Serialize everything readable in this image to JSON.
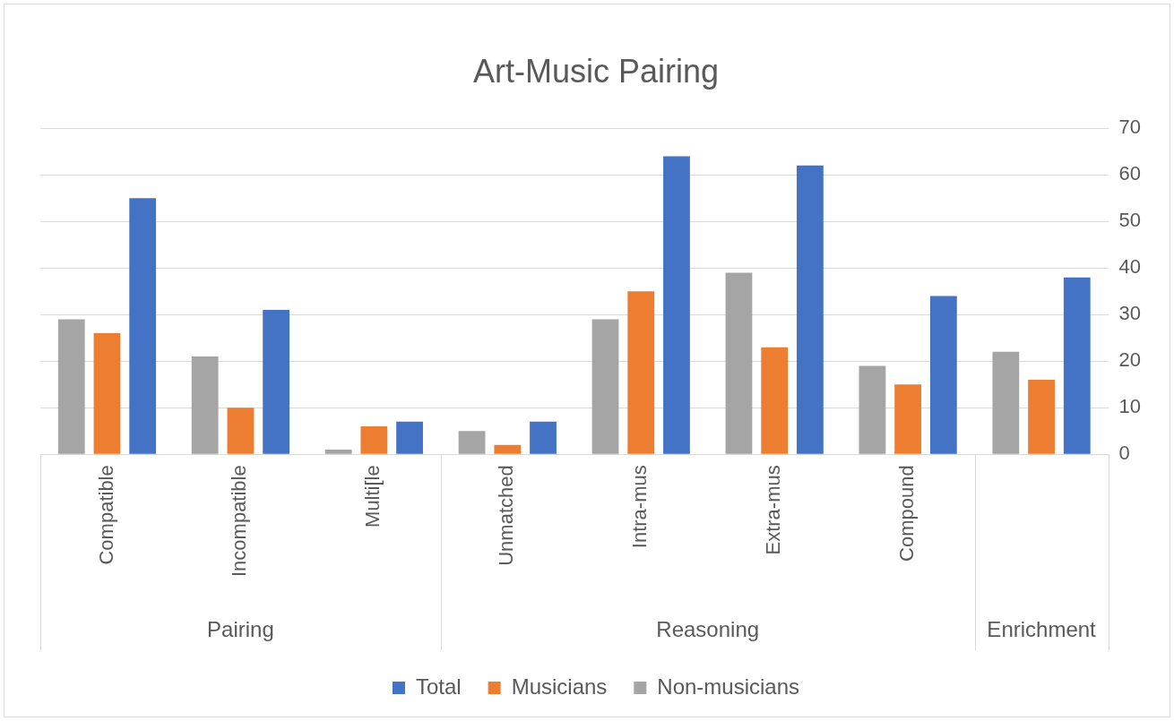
{
  "chart_data": {
    "type": "bar",
    "title": "Art-Music Pairing",
    "categories": [
      "Compatible",
      "Incompatible",
      "Multi[le",
      "Unmatched",
      "Intra-mus",
      "Extra-mus",
      "Compound",
      null
    ],
    "series": [
      {
        "name": "Non-musicians",
        "color": "#a5a5a5",
        "values": [
          29,
          21,
          1,
          5,
          29,
          39,
          19,
          22
        ]
      },
      {
        "name": "Musicians",
        "color": "#ed7d31",
        "values": [
          26,
          10,
          6,
          2,
          35,
          23,
          15,
          16
        ]
      },
      {
        "name": "Total",
        "color": "#4472c4",
        "values": [
          55,
          31,
          7,
          7,
          64,
          62,
          34,
          38
        ]
      }
    ],
    "ylim": [
      0,
      70
    ],
    "yticks": [
      0,
      10,
      20,
      30,
      40,
      50,
      60,
      70
    ],
    "grid": "y",
    "legend": "bottom",
    "annotations": [
      "Pairing",
      "Reasoning",
      "Enrichment"
    ]
  }
}
